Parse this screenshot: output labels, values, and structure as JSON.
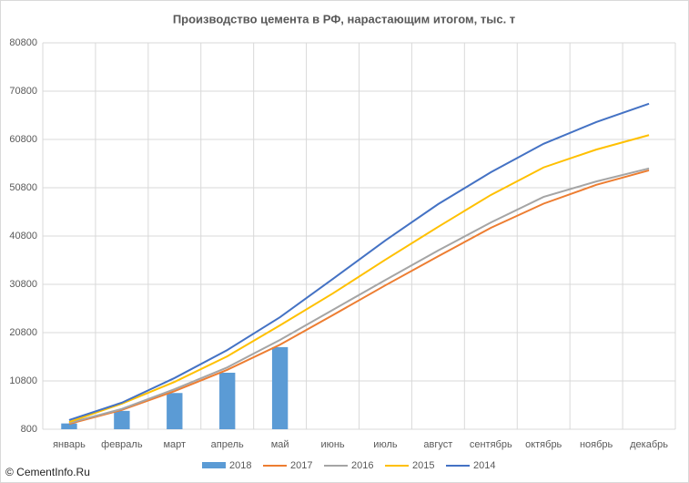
{
  "chart_data": {
    "type": "combo",
    "title": "Производство цемента в РФ, нарастающим итогом, тыс. т",
    "categories": [
      "январь",
      "февраль",
      "март",
      "апрель",
      "май",
      "июнь",
      "июль",
      "август",
      "сентябрь",
      "октябрь",
      "ноябрь",
      "декабрь"
    ],
    "series": [
      {
        "name": "2018",
        "type": "bar",
        "color": "#5b9bd5",
        "values": [
          2000,
          4600,
          8300,
          12500,
          17800,
          null,
          null,
          null,
          null,
          null,
          null,
          null
        ]
      },
      {
        "name": "2017",
        "type": "line",
        "color": "#ed7d31",
        "values": [
          1900,
          4800,
          8700,
          13100,
          18300,
          24400,
          30600,
          36600,
          42500,
          47500,
          51400,
          54400
        ]
      },
      {
        "name": "2016",
        "type": "line",
        "color": "#a5a5a5",
        "values": [
          2100,
          5000,
          9100,
          13600,
          19300,
          25500,
          31700,
          37800,
          43600,
          48900,
          52100,
          54800
        ]
      },
      {
        "name": "2015",
        "type": "line",
        "color": "#ffc000",
        "values": [
          2300,
          6100,
          10600,
          15900,
          22300,
          28900,
          35900,
          42700,
          49300,
          55000,
          58700,
          61700
        ]
      },
      {
        "name": "2014",
        "type": "line",
        "color": "#4472c4",
        "values": [
          2700,
          6300,
          11400,
          17200,
          24000,
          31900,
          39900,
          47400,
          54000,
          59900,
          64400,
          68200
        ]
      }
    ],
    "ylim": [
      800,
      80800
    ],
    "yticks": [
      800,
      10800,
      20800,
      30800,
      40800,
      50800,
      60800,
      70800,
      80800
    ],
    "grid": true,
    "legend": "bottom",
    "watermark": "© CementInfo.Ru"
  }
}
